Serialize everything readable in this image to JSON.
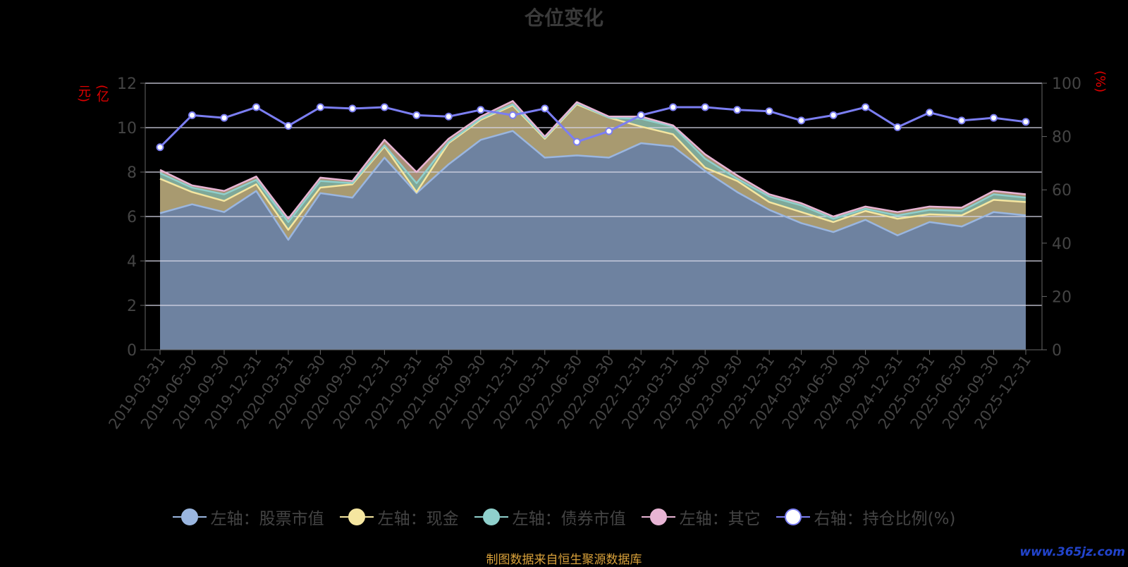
{
  "chart_data": {
    "type": "area",
    "title": "仓位变化",
    "left_unit": "(亿元)",
    "right_unit": "(%)",
    "left_ylim": [
      0,
      12
    ],
    "left_ticks": [
      0,
      2,
      4,
      6,
      8,
      10,
      12
    ],
    "right_ylim": [
      0,
      100
    ],
    "right_ticks": [
      0,
      20,
      40,
      60,
      80,
      100
    ],
    "grid": true,
    "legend_position": "bottom",
    "categories": [
      "2019-03-31",
      "2019-06-30",
      "2019-09-30",
      "2019-12-31",
      "2020-03-31",
      "2020-06-30",
      "2020-09-30",
      "2020-12-31",
      "2021-03-31",
      "2021-06-30",
      "2021-09-30",
      "2021-12-31",
      "2022-03-31",
      "2022-06-30",
      "2022-09-30",
      "2022-12-31",
      "2023-03-31",
      "2023-06-30",
      "2023-09-30",
      "2023-12-31",
      "2024-03-31",
      "2024-06-30",
      "2024-09-30",
      "2024-12-31",
      "2025-03-31",
      "2025-06-30",
      "2025-09-30",
      "2025-12-31"
    ],
    "series": [
      {
        "name": "左轴：股票市值",
        "axis": "left",
        "stack": true,
        "color": "#9ab6e0",
        "fill": "#6e82a0",
        "values": [
          6.15,
          6.55,
          6.2,
          7.15,
          4.95,
          7.05,
          6.85,
          8.65,
          7.05,
          8.35,
          9.45,
          9.85,
          8.65,
          8.75,
          8.65,
          9.3,
          9.15,
          8.05,
          7.1,
          6.3,
          5.7,
          5.3,
          5.85,
          5.15,
          5.75,
          5.55,
          6.2,
          6.05
        ]
      },
      {
        "name": "左轴：现金",
        "axis": "left",
        "stack": true,
        "color": "#f5e6a0",
        "fill": "#a89a70",
        "values": [
          1.55,
          0.55,
          0.5,
          0.3,
          0.45,
          0.25,
          0.6,
          0.5,
          0.05,
          0.95,
          0.9,
          1.15,
          0.85,
          2.3,
          1.8,
          0.75,
          0.55,
          0.15,
          0.5,
          0.35,
          0.5,
          0.45,
          0.4,
          0.75,
          0.35,
          0.5,
          0.55,
          0.6
        ]
      },
      {
        "name": "左轴：债券市值",
        "axis": "left",
        "stack": true,
        "color": "#8fd0cc",
        "fill": "#7fa898",
        "values": [
          0.25,
          0.2,
          0.3,
          0.2,
          0.35,
          0.3,
          0.05,
          0.05,
          0.4,
          0.05,
          0.05,
          0.05,
          0.05,
          0.05,
          0.0,
          0.35,
          0.35,
          0.4,
          0.1,
          0.25,
          0.3,
          0.15,
          0.1,
          0.15,
          0.2,
          0.2,
          0.25,
          0.2
        ]
      },
      {
        "name": "左轴：其它",
        "axis": "left",
        "stack": true,
        "color": "#e8b4d4",
        "fill": "#a89078",
        "values": [
          0.15,
          0.1,
          0.15,
          0.15,
          0.15,
          0.15,
          0.1,
          0.25,
          0.5,
          0.15,
          0.1,
          0.15,
          0.05,
          0.05,
          0.05,
          0.1,
          0.05,
          0.2,
          0.15,
          0.1,
          0.1,
          0.1,
          0.1,
          0.15,
          0.15,
          0.15,
          0.15,
          0.15
        ]
      },
      {
        "name": "右轴：持仓比例(%)",
        "axis": "right",
        "stack": false,
        "color": "#7b7ef2",
        "fill": "",
        "values": [
          76,
          88,
          87,
          91,
          84,
          91,
          90.5,
          91,
          88,
          87.5,
          90,
          88,
          90.5,
          78,
          82,
          88,
          91,
          91,
          90,
          89.5,
          86,
          88,
          91,
          83.5,
          89,
          86,
          87,
          85.5
        ]
      }
    ]
  },
  "legend": {
    "items": [
      {
        "label": "左轴：股票市值",
        "color": "#9ab6e0",
        "fill": "#9ab6e0"
      },
      {
        "label": "左轴：现金",
        "color": "#f5e6a0",
        "fill": "#f5e6a0"
      },
      {
        "label": "左轴：债券市值",
        "color": "#8fd0cc",
        "fill": "#8fd0cc"
      },
      {
        "label": "左轴：其它",
        "color": "#e8b4d4",
        "fill": "#e8b4d4"
      },
      {
        "label": "右轴：持仓比例(%)",
        "color": "#7b7ef2",
        "fill": "#ffffff"
      }
    ]
  },
  "footer": {
    "source": "制图数据来自恒生聚源数据库",
    "watermark": "www.365jz.com"
  }
}
